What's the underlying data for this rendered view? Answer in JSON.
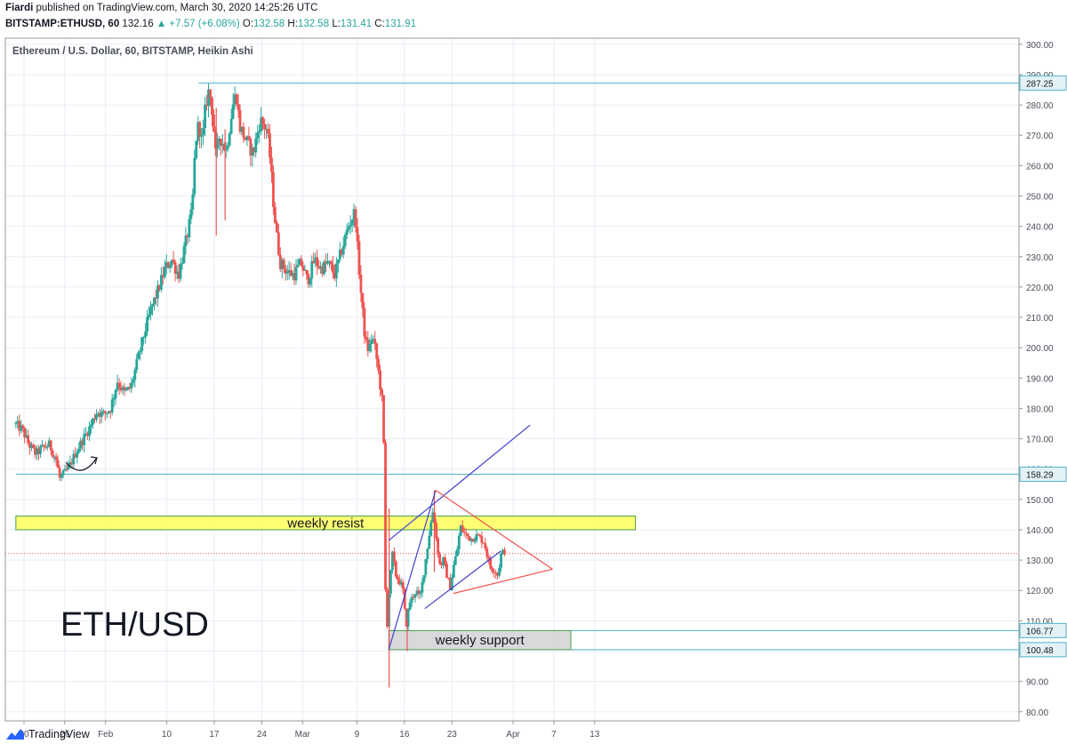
{
  "header": {
    "author": "Fiardi",
    "published_text": "published on TradingView.com, March 30, 2020 14:25:26 UTC",
    "symbol": "BITSTAMP:ETHUSD, 60",
    "last": "132.16",
    "change_arrow": "▲",
    "change": "+7.57 (+6.08%)",
    "o_label": "O:",
    "o_value": "132.58",
    "h_label": "H:",
    "h_value": "132.58",
    "l_label": "L:",
    "l_value": "131.41",
    "c_label": "C:",
    "c_value": "131.91"
  },
  "footer": {
    "brand": "TradingView"
  },
  "colors": {
    "up": "#26a69a",
    "down": "#ef5350",
    "accent": "#2962ff"
  },
  "chart_data": {
    "type": "candlestick",
    "chart_title": "Ethereum / U.S. Dollar, 60, BITSTAMP, Heikin Ashi",
    "watermark": "ETH/USD",
    "y_range": [
      77,
      302
    ],
    "y_ticks": [
      "300.00",
      "290.00",
      "280.00",
      "270.00",
      "260.00",
      "250.00",
      "240.00",
      "230.00",
      "220.00",
      "210.00",
      "200.00",
      "190.00",
      "180.00",
      "170.00",
      "160.00",
      "150.00",
      "140.00",
      "130.00",
      "120.00",
      "110.00",
      "100.00",
      "90.00",
      "80.00"
    ],
    "x_ticks": [
      {
        "label": "20",
        "day": 0
      },
      {
        "label": "26",
        "day": 6
      },
      {
        "label": "Feb",
        "day": 12
      },
      {
        "label": "10",
        "day": 21
      },
      {
        "label": "17",
        "day": 28
      },
      {
        "label": "24",
        "day": 35
      },
      {
        "label": "Mar",
        "day": 41
      },
      {
        "label": "9",
        "day": 49
      },
      {
        "label": "16",
        "day": 56
      },
      {
        "label": "23",
        "day": 63
      },
      {
        "label": "Apr",
        "day": 72
      },
      {
        "label": "7",
        "day": 78
      },
      {
        "label": "13",
        "day": 84
      }
    ],
    "price_path": [
      [
        -1.2,
        175
      ],
      [
        0,
        173
      ],
      [
        1,
        168
      ],
      [
        2,
        165
      ],
      [
        3,
        167
      ],
      [
        4,
        168
      ],
      [
        5,
        163
      ],
      [
        5.5,
        157
      ],
      [
        6,
        158
      ],
      [
        7,
        161
      ],
      [
        8,
        166
      ],
      [
        9,
        170
      ],
      [
        10,
        174
      ],
      [
        11,
        179
      ],
      [
        12,
        178
      ],
      [
        13,
        180
      ],
      [
        14,
        189
      ],
      [
        15,
        185
      ],
      [
        16,
        187
      ],
      [
        17,
        196
      ],
      [
        18,
        205
      ],
      [
        19,
        213
      ],
      [
        20,
        219
      ],
      [
        21,
        226
      ],
      [
        22,
        229
      ],
      [
        23,
        224
      ],
      [
        24,
        234
      ],
      [
        25,
        245
      ],
      [
        25.5,
        268
      ],
      [
        26,
        274
      ],
      [
        26.5,
        267
      ],
      [
        27,
        280
      ],
      [
        27.5,
        285
      ],
      [
        28,
        278
      ],
      [
        28.5,
        262
      ],
      [
        29,
        270
      ],
      [
        30,
        265
      ],
      [
        31,
        280
      ],
      [
        31.5,
        284
      ],
      [
        32,
        273
      ],
      [
        33,
        268
      ],
      [
        34,
        264
      ],
      [
        35,
        275
      ],
      [
        36,
        272
      ],
      [
        36.5,
        262
      ],
      [
        37,
        247
      ],
      [
        37.5,
        236
      ],
      [
        38,
        228
      ],
      [
        39,
        225
      ],
      [
        40,
        224
      ],
      [
        41,
        228
      ],
      [
        42,
        222
      ],
      [
        43,
        229
      ],
      [
        44,
        226
      ],
      [
        45,
        228
      ],
      [
        46,
        224
      ],
      [
        47,
        232
      ],
      [
        48,
        240
      ],
      [
        49,
        245
      ],
      [
        49.3,
        234
      ],
      [
        50,
        214
      ],
      [
        50.5,
        202
      ],
      [
        51,
        199
      ],
      [
        51.5,
        204
      ],
      [
        52,
        199
      ],
      [
        52.5,
        191
      ],
      [
        53,
        182
      ],
      [
        53.2,
        170
      ],
      [
        53.3,
        145
      ],
      [
        53.5,
        115
      ],
      [
        53.7,
        108
      ],
      [
        54,
        120
      ],
      [
        54.5,
        132
      ],
      [
        55,
        125
      ],
      [
        55.5,
        123
      ],
      [
        56,
        121
      ],
      [
        56.5,
        108
      ],
      [
        57,
        116
      ],
      [
        58,
        120
      ],
      [
        58.5,
        117
      ],
      [
        59,
        124
      ],
      [
        60,
        140
      ],
      [
        60.5,
        147
      ],
      [
        61,
        136
      ],
      [
        61.5,
        128
      ],
      [
        62,
        130
      ],
      [
        62.5,
        125
      ],
      [
        63,
        121
      ],
      [
        63.5,
        128
      ],
      [
        64,
        133
      ],
      [
        64.5,
        141
      ],
      [
        65,
        139
      ],
      [
        66,
        137
      ],
      [
        67,
        138
      ],
      [
        68,
        136
      ],
      [
        68.5,
        131
      ],
      [
        69,
        127
      ],
      [
        69.5,
        127
      ],
      [
        70,
        125
      ],
      [
        70.5,
        132
      ],
      [
        71,
        133
      ]
    ],
    "candle_count": 280,
    "spikes": [
      {
        "day": 53.75,
        "high": 147,
        "low": 88
      },
      {
        "day": 56.4,
        "high": 110,
        "low": 100
      },
      {
        "day": 60.4,
        "high": 153,
        "low": 126
      },
      {
        "day": 28.3,
        "high": 279,
        "low": 237
      },
      {
        "day": 29.6,
        "high": 272,
        "low": 242
      }
    ],
    "horizontal_levels": [
      {
        "price": 287.25,
        "label": "287.25",
        "from_day": 25.7
      },
      {
        "price": 158.29,
        "label": "158.29",
        "from_day": -1.2
      }
    ],
    "last_price_line": 132.16,
    "zones": [
      {
        "label": "weekly resist",
        "from_price": 140,
        "to_price": 144.5,
        "from_day": -1.2,
        "to_day": 90,
        "fill": "#ffff5a"
      },
      {
        "label": "weekly support",
        "from_price": 100.48,
        "to_price": 106.77,
        "from_day": 53.7,
        "to_day": 80.5,
        "fill": "#cfcfd2",
        "price_labels": [
          "106.77",
          "100.48"
        ]
      }
    ],
    "trendlines": [
      {
        "color": "#3f3fcf",
        "from": [
          53.7,
          100.5
        ],
        "to": [
          60.6,
          153
        ]
      },
      {
        "color": "#3f3fcf",
        "from": [
          53.7,
          136.5
        ],
        "to": [
          74.5,
          174.5
        ]
      },
      {
        "color": "#3f3fcf",
        "from": [
          59,
          114
        ],
        "to": [
          70.2,
          133
        ]
      },
      {
        "color": "#ef5350",
        "from": [
          60.6,
          153
        ],
        "to": [
          77.8,
          127
        ]
      },
      {
        "color": "#ef5350",
        "from": [
          63.2,
          119
        ],
        "to": [
          77.8,
          127
        ]
      }
    ]
  }
}
